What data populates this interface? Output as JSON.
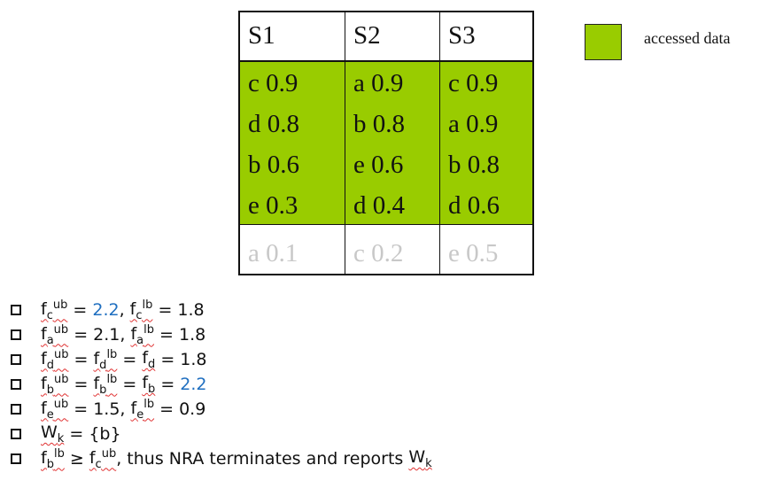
{
  "table": {
    "headers": [
      "S1",
      "S2",
      "S3"
    ],
    "accessed_rows": [
      [
        "c 0.9",
        "a 0.9",
        "c 0.9"
      ],
      [
        "d 0.8",
        "b 0.8",
        "a 0.9"
      ],
      [
        "b 0.6",
        "e 0.6",
        "b 0.8"
      ],
      [
        "e 0.3",
        "d 0.4",
        "d 0.6"
      ]
    ],
    "unaccessed_row": [
      "a 0.1",
      "c 0.2",
      "e 0.5"
    ]
  },
  "legend": {
    "label": "accessed data",
    "color": "#99cc00"
  },
  "colors": {
    "highlight": "#1f6fc0",
    "unaccessed_text": "#c8c8c8"
  },
  "bullets": [
    [
      {
        "b": "f",
        "sub": "c",
        "sup": "ub"
      },
      {
        "t": " = "
      },
      {
        "h": "2.2"
      },
      {
        "t": ", "
      },
      {
        "b": "f",
        "sub": "c",
        "sup": "lb"
      },
      {
        "t": " = 1.8"
      }
    ],
    [
      {
        "b": "f",
        "sub": "a",
        "sup": "ub"
      },
      {
        "t": " = 2.1, "
      },
      {
        "b": "f",
        "sub": "a",
        "sup": "lb"
      },
      {
        "t": " = 1.8"
      }
    ],
    [
      {
        "b": "f",
        "sub": "d",
        "sup": "ub"
      },
      {
        "t": " = "
      },
      {
        "b": "f",
        "sub": "d",
        "sup": "lb"
      },
      {
        "t": " = "
      },
      {
        "b": "f",
        "sub": "d"
      },
      {
        "t": " = 1.8"
      }
    ],
    [
      {
        "b": "f",
        "sub": "b",
        "sup": "ub"
      },
      {
        "t": " = "
      },
      {
        "b": "f",
        "sub": "b",
        "sup": "lb"
      },
      {
        "t": " = "
      },
      {
        "b": "f",
        "sub": "b"
      },
      {
        "t": " = "
      },
      {
        "h": "2.2"
      }
    ],
    [
      {
        "b": "f",
        "sub": "e",
        "sup": "ub"
      },
      {
        "t": " = 1.5, "
      },
      {
        "b": "f",
        "sub": "e",
        "sup": "lb"
      },
      {
        "t": " = 0.9"
      }
    ],
    [
      {
        "b": "W",
        "sub": "k"
      },
      {
        "t": " = {b}"
      }
    ],
    [
      {
        "b": "f",
        "sub": "b",
        "sup": "lb"
      },
      {
        "t": " ≥ "
      },
      {
        "b": "f",
        "sub": "c",
        "sup": "ub"
      },
      {
        "t": ", thus NRA terminates and reports "
      },
      {
        "b": "W",
        "sub": "k"
      }
    ]
  ]
}
